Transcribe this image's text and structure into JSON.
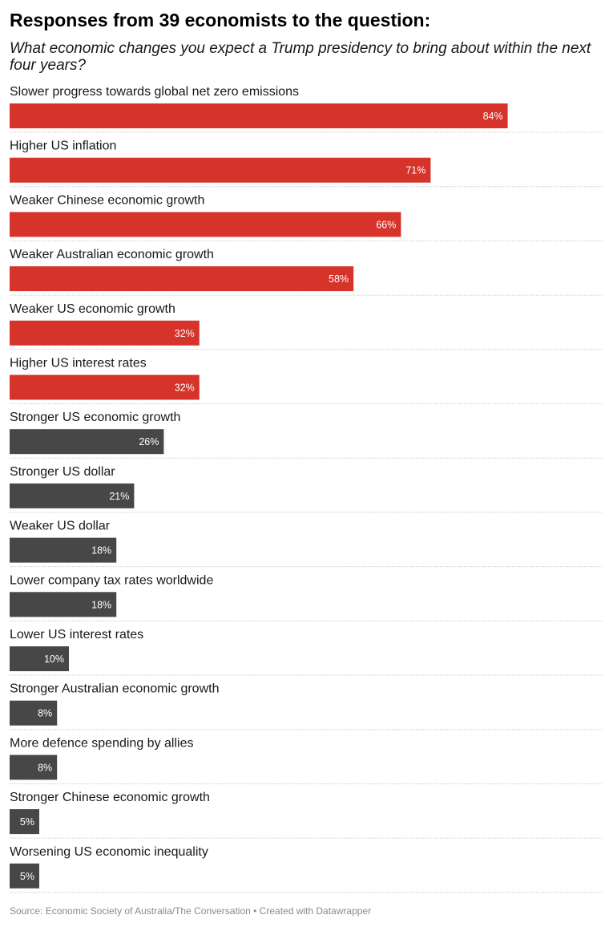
{
  "header": {
    "title": "Responses from 39 economists to the question:",
    "subtitle": "What economic changes you expect a Trump presidency to bring about within the next four years?"
  },
  "footer": {
    "source": "Source: Economic Society of Australia/The Conversation • Created with Datawrapper"
  },
  "colors": {
    "negative": "#d6332b",
    "other": "#474747",
    "divider": "#cccccc"
  },
  "chart_data": {
    "type": "bar",
    "orientation": "horizontal",
    "value_suffix": "%",
    "xlim": [
      0,
      100
    ],
    "grid": false,
    "categories": [
      "Slower progress towards global net zero emissions",
      "Higher US inflation",
      "Weaker Chinese economic growth",
      "Weaker Australian economic growth",
      "Weaker US economic growth",
      "Higher US interest rates",
      "Stronger US economic growth",
      "Stronger US dollar",
      "Weaker US dollar",
      "Lower company tax rates worldwide",
      "Lower US interest rates",
      "Stronger Australian economic growth",
      "More defence spending by allies",
      "Stronger Chinese economic growth",
      "Worsening US economic inequality"
    ],
    "values": [
      84,
      71,
      66,
      58,
      32,
      32,
      26,
      21,
      18,
      18,
      10,
      8,
      8,
      5,
      5
    ],
    "color_groups": [
      "negative",
      "negative",
      "negative",
      "negative",
      "negative",
      "negative",
      "other",
      "other",
      "other",
      "other",
      "other",
      "other",
      "other",
      "other",
      "other"
    ]
  }
}
